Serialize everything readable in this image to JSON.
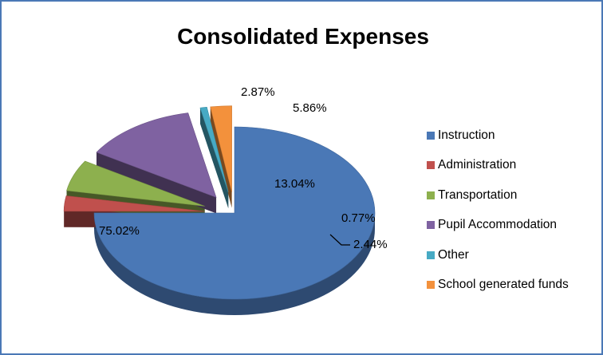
{
  "chart_data": {
    "type": "pie",
    "title": "Consolidated Expenses",
    "legend_position": "right",
    "three_d": true,
    "exploded": true,
    "slices": [
      {
        "label": "Instruction",
        "value": 75.02,
        "display": "75.02%",
        "color": "#4a78b6"
      },
      {
        "label": "Administration",
        "value": 2.87,
        "display": "2.87%",
        "color": "#c0504d"
      },
      {
        "label": "Transportation",
        "value": 5.86,
        "display": "5.86%",
        "color": "#8db04e"
      },
      {
        "label": "Pupil Accommodation",
        "value": 13.04,
        "display": "13.04%",
        "color": "#7f62a1"
      },
      {
        "label": "Other",
        "value": 0.77,
        "display": "0.77%",
        "color": "#47aac4"
      },
      {
        "label": "School generated funds",
        "value": 2.44,
        "display": "2.44%",
        "color": "#f3913c"
      }
    ]
  }
}
